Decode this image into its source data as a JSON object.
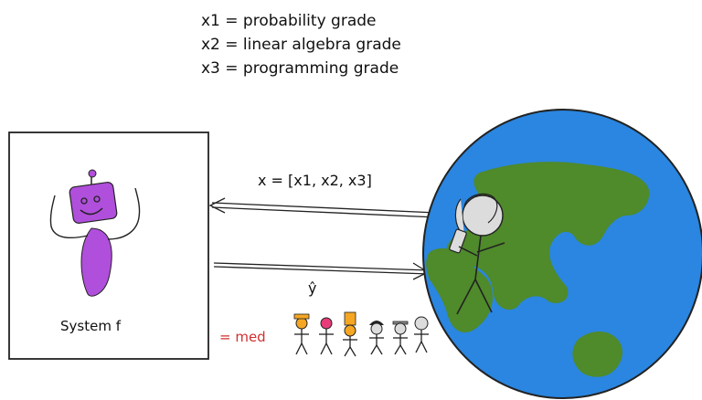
{
  "definitions": [
    "x1 = probability grade",
    "x2 = linear algebra grade",
    "x3 = programming grade"
  ],
  "feature_vector_label": "x = [x1, x2, x3]",
  "system_label": "System f",
  "prediction_label": "= med",
  "prediction_symbol": "ŷ",
  "colors": {
    "ocean": "#2a86e0",
    "land": "#4f8a2b",
    "robot": "#b04fdb",
    "prediction_text": "#d32f2f"
  },
  "icons": [
    "robot-icon",
    "globe-icon",
    "person-icon",
    "crowd-icon"
  ]
}
